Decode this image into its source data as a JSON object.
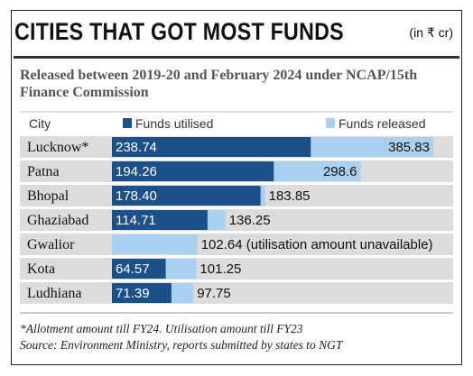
{
  "header": {
    "title": "CITIES THAT GOT MOST FUNDS",
    "unit": "(in ₹ cr)"
  },
  "subtitle": "Released between 2019-20 and February 2024 under NCAP/15th Finance Commission",
  "colors": {
    "utilised": "#1b5089",
    "released": "#a9d0ef",
    "row_bg": "#dcdcdc"
  },
  "chart_data": {
    "type": "bar",
    "orientation": "horizontal",
    "stacked": "overlay",
    "category_header": "City",
    "categories": [
      "Lucknow*",
      "Patna",
      "Bhopal",
      "Ghaziabad",
      "Gwalior",
      "Kota",
      "Ludhiana"
    ],
    "series": [
      {
        "name": "Funds utilised",
        "values": [
          238.74,
          194.26,
          178.4,
          114.71,
          null,
          64.57,
          71.39
        ]
      },
      {
        "name": "Funds released",
        "values": [
          385.83,
          298.6,
          183.85,
          136.25,
          102.64,
          101.25,
          97.75
        ]
      }
    ],
    "labels": {
      "utilised": [
        "238.74",
        "194.26",
        "178.40",
        "114.71",
        "",
        "64.57",
        "71.39"
      ],
      "released": [
        "385.83",
        "298.6",
        "183.85",
        "136.25",
        "102.64 (utilisation amount unavailable)",
        "101.25",
        "97.75"
      ]
    },
    "xlim": [
      0,
      400
    ],
    "legend": "top"
  },
  "footnotes": [
    "*Allotment amount till FY24. Utilisation amount till FY23",
    "Source: Environment Ministry, reports submitted by states to NGT"
  ]
}
